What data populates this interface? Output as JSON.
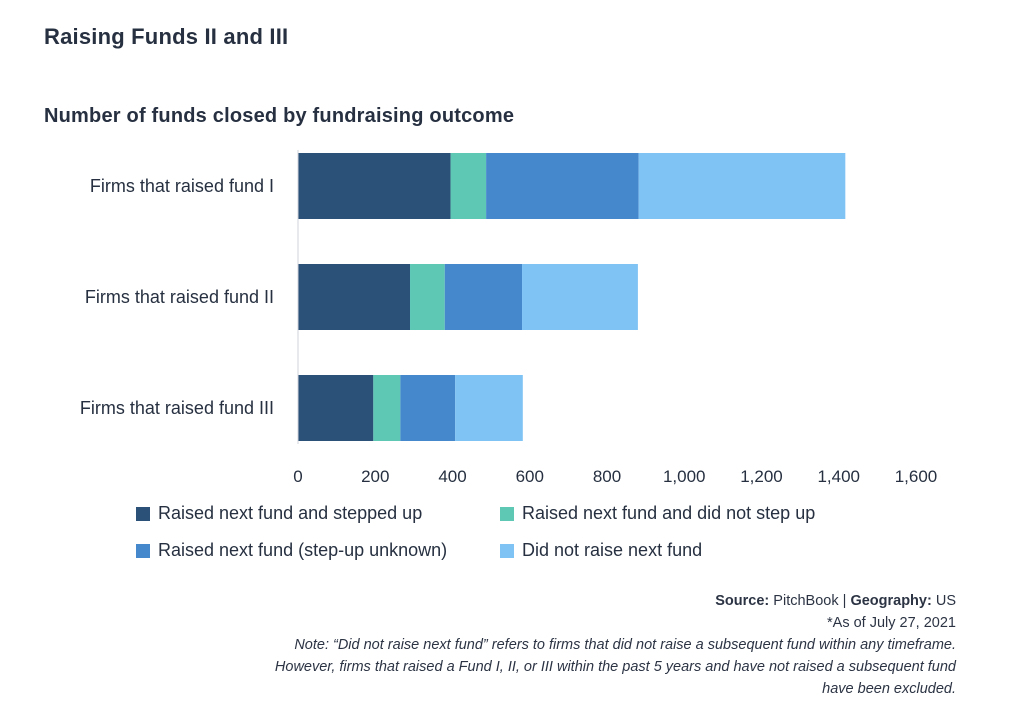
{
  "page": {
    "title": "Raising Funds II and III"
  },
  "chart_data": {
    "type": "bar",
    "orientation": "horizontal",
    "stacked": true,
    "title": "Number of funds closed by fundraising outcome",
    "categories": [
      "Firms that raised fund I",
      "Firms that raised fund II",
      "Firms that raised fund III"
    ],
    "series": [
      {
        "name": "Raised next fund and stepped up",
        "color": "#2b5179",
        "values": [
          395,
          290,
          195
        ]
      },
      {
        "name": "Raised next fund and did not step up",
        "color": "#5ec8b5",
        "values": [
          92,
          90,
          70
        ]
      },
      {
        "name": "Raised next fund (step-up unknown)",
        "color": "#4588cc",
        "values": [
          395,
          200,
          142
        ]
      },
      {
        "name": "Did not raise next fund",
        "color": "#7fc3f5",
        "values": [
          535,
          300,
          175
        ]
      }
    ],
    "xlim": [
      0,
      1600
    ],
    "xticks": [
      0,
      200,
      400,
      600,
      800,
      1000,
      1200,
      1400,
      1600
    ],
    "xtick_labels": [
      "0",
      "200",
      "400",
      "600",
      "800",
      "1,000",
      "1,200",
      "1,400",
      "1,600"
    ],
    "grid": false,
    "legend_position": "bottom"
  },
  "footer": {
    "source_label": "Source:",
    "source_value": "PitchBook",
    "separator": "|",
    "geography_label": "Geography:",
    "geography_value": "US",
    "as_of": "*As of July 27, 2021",
    "note_line1": "Note: “Did not raise next fund” refers to firms that did not raise a subsequent fund within any timeframe.",
    "note_line2": "However, firms that raised a Fund I, II, or III within the past 5 years and have not raised a subsequent fund",
    "note_line3": "have been excluded."
  }
}
